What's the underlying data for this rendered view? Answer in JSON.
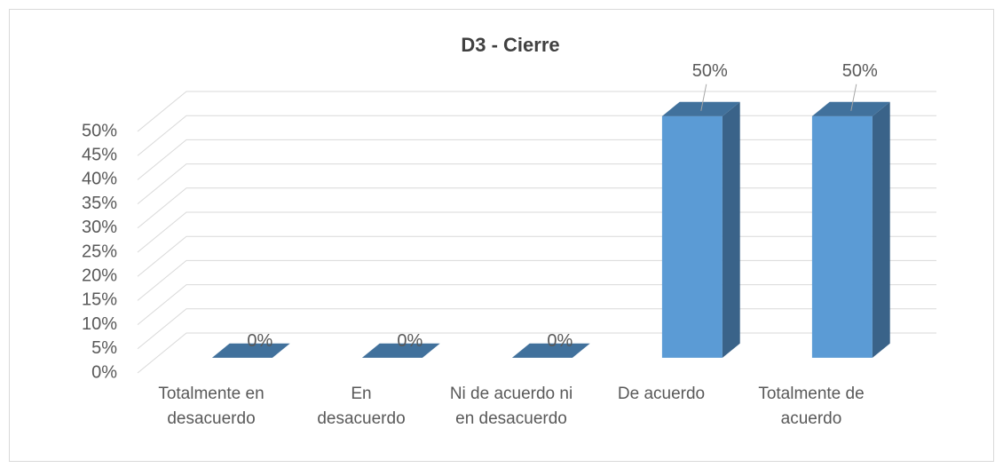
{
  "chart_data": {
    "type": "bar3d",
    "title": "D3 - Cierre",
    "categories": [
      "Totalmente en desacuerdo",
      "En desacuerdo",
      "Ni de acuerdo ni en desacuerdo",
      "De acuerdo",
      "Totalmente de acuerdo"
    ],
    "values": [
      0,
      0,
      0,
      50,
      50
    ],
    "value_labels": [
      "0%",
      "0%",
      "0%",
      "50%",
      "50%"
    ],
    "color": "#5b9bd5",
    "ylim": [
      0,
      50
    ],
    "yticks": [
      {
        "value": 0,
        "label": "0%"
      },
      {
        "value": 5,
        "label": "5%"
      },
      {
        "value": 10,
        "label": "10%"
      },
      {
        "value": 15,
        "label": "15%"
      },
      {
        "value": 20,
        "label": "20%"
      },
      {
        "value": 25,
        "label": "25%"
      },
      {
        "value": 30,
        "label": "30%"
      },
      {
        "value": 35,
        "label": "35%"
      },
      {
        "value": 40,
        "label": "40%"
      },
      {
        "value": 45,
        "label": "45%"
      },
      {
        "value": 50,
        "label": "50%"
      }
    ],
    "grid": true
  }
}
